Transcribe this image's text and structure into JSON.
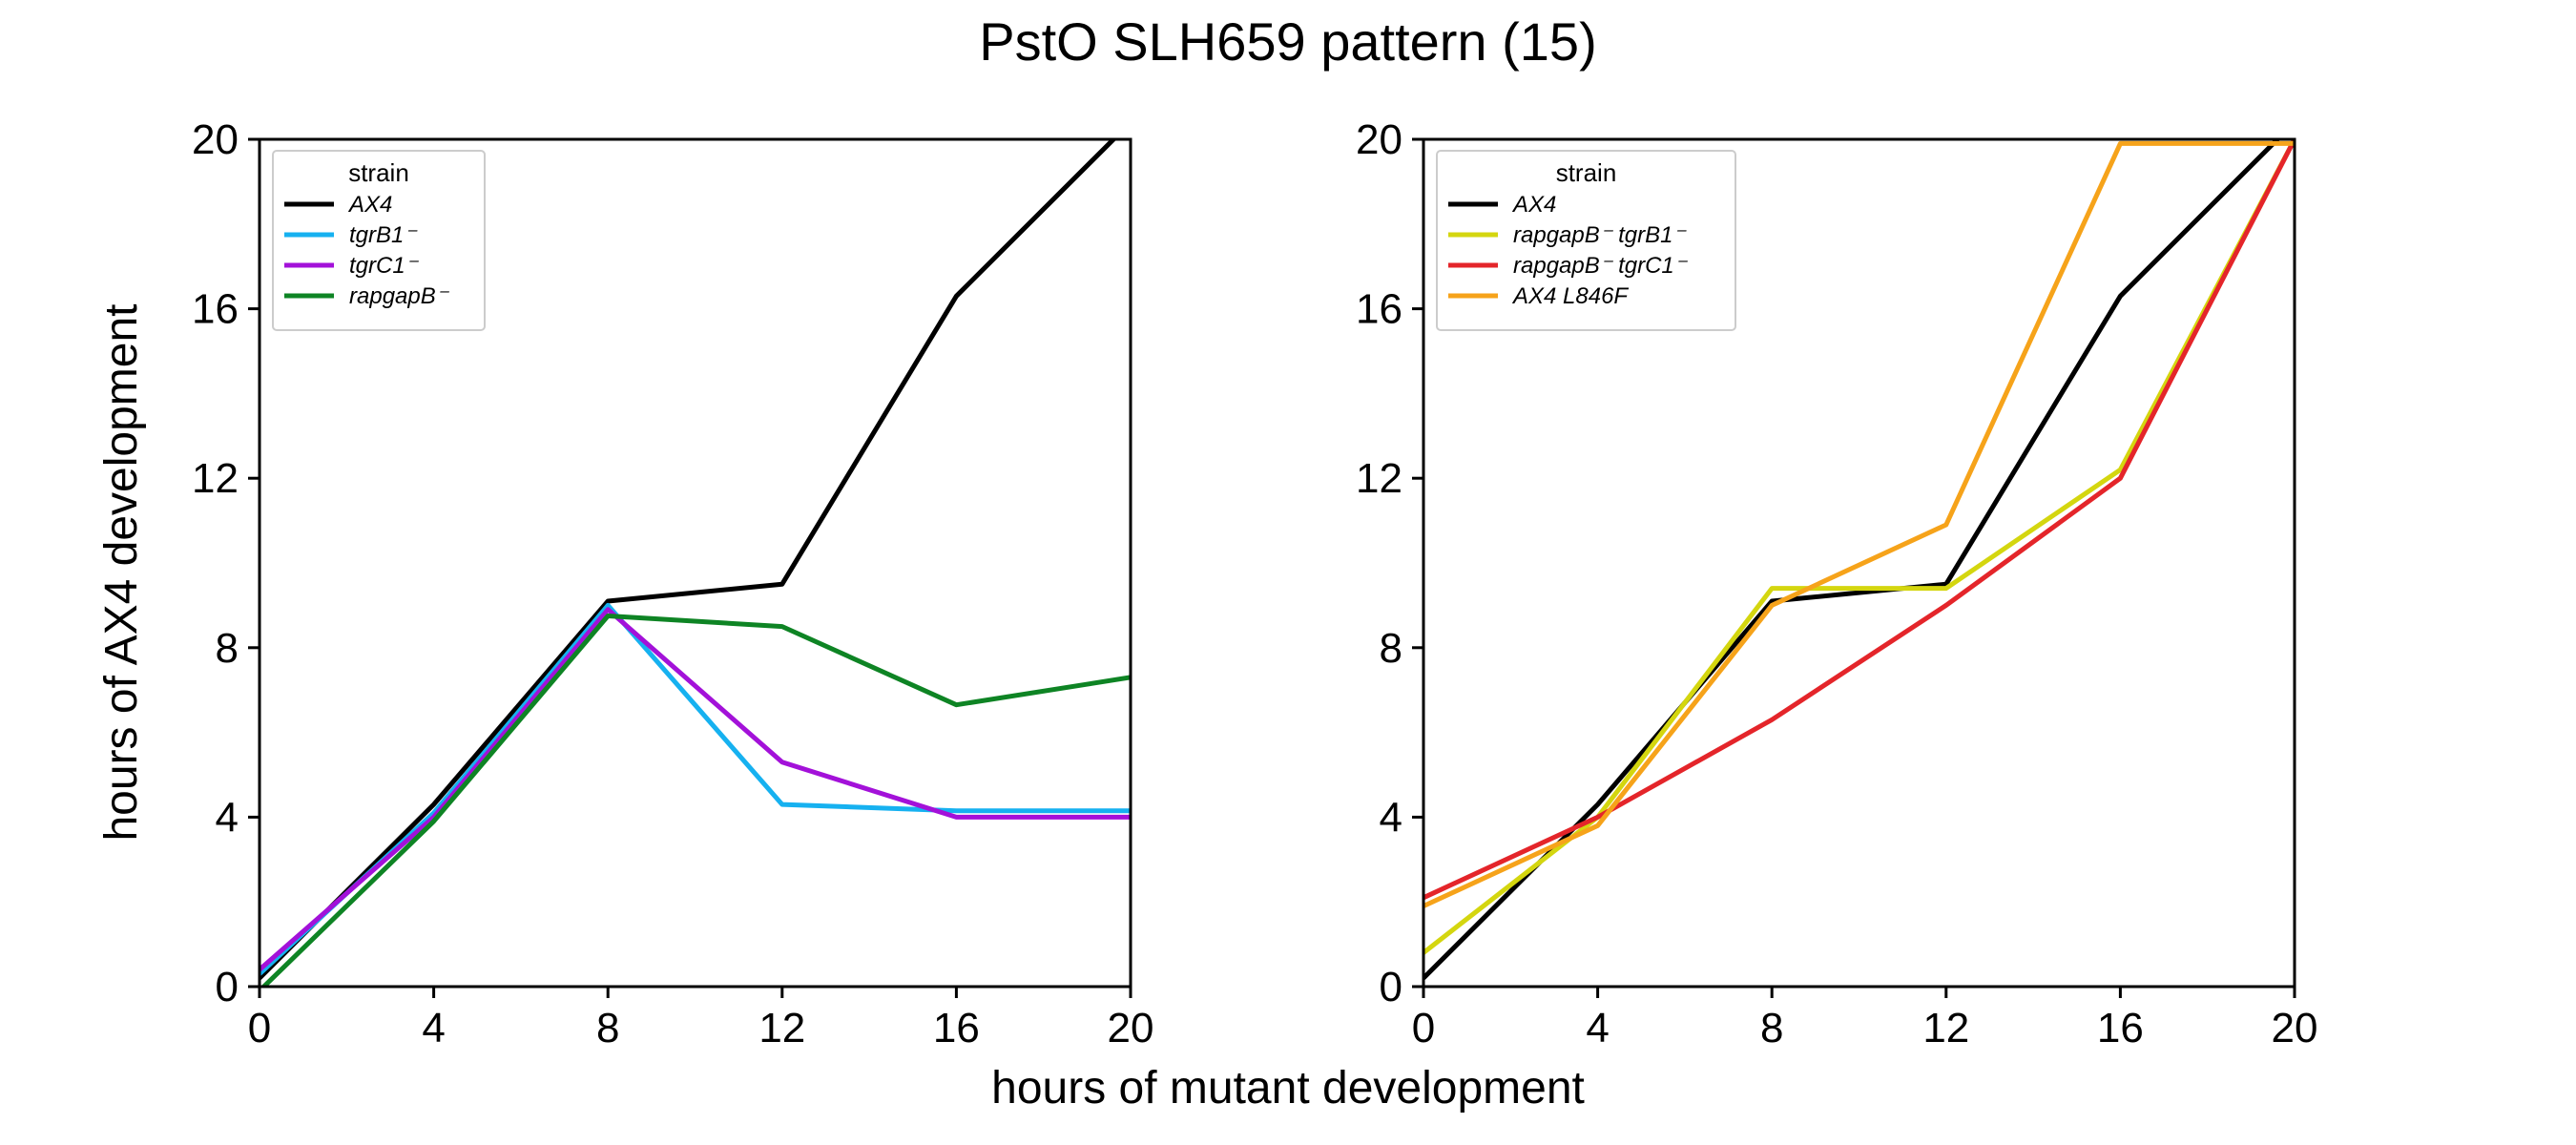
{
  "figure": {
    "title": "PstO SLH659 pattern (15)",
    "xlabel": "hours of mutant development",
    "ylabel": "hours of AX4 development"
  },
  "chart_data": [
    {
      "type": "line",
      "panel": "left",
      "xlim": [
        0,
        20
      ],
      "ylim": [
        0,
        20
      ],
      "xticks": [
        0,
        4,
        8,
        12,
        16,
        20
      ],
      "yticks": [
        0,
        4,
        8,
        12,
        16,
        20
      ],
      "grid": false,
      "legend": {
        "title": "strain",
        "placement": "top-left"
      },
      "x": [
        0,
        4,
        8,
        12,
        16,
        20
      ],
      "series": [
        {
          "name": "AX4",
          "color": "#000000",
          "values": [
            0.2,
            4.3,
            9.1,
            9.5,
            16.3,
            20.4
          ]
        },
        {
          "name": "tgrB1⁻",
          "color": "#16b1f0",
          "values": [
            0.3,
            4.1,
            9.0,
            4.3,
            4.15,
            4.15
          ]
        },
        {
          "name": "tgrC1⁻",
          "color": "#a311d9",
          "values": [
            0.4,
            4.0,
            8.9,
            5.3,
            4.0,
            4.0
          ]
        },
        {
          "name": "rapgapB⁻",
          "color": "#0e8424",
          "values": [
            -0.1,
            3.9,
            8.75,
            8.5,
            6.65,
            7.3
          ]
        }
      ]
    },
    {
      "type": "line",
      "panel": "right",
      "xlim": [
        0,
        20
      ],
      "ylim": [
        0,
        20
      ],
      "xticks": [
        0,
        4,
        8,
        12,
        16,
        20
      ],
      "yticks": [
        0,
        4,
        8,
        12,
        16,
        20
      ],
      "grid": false,
      "legend": {
        "title": "strain",
        "placement": "top-left"
      },
      "x": [
        0,
        4,
        8,
        12,
        16,
        20
      ],
      "series": [
        {
          "name": "AX4",
          "color": "#000000",
          "values": [
            0.2,
            4.3,
            9.1,
            9.5,
            16.3,
            20.4
          ]
        },
        {
          "name": "rapgapB⁻ tgrB1⁻",
          "color": "#d4d60f",
          "values": [
            0.8,
            4.0,
            9.4,
            9.4,
            12.2,
            20.0
          ]
        },
        {
          "name": "rapgapB⁻ tgrC1⁻",
          "color": "#e4252a",
          "values": [
            2.1,
            4.0,
            6.3,
            9.0,
            12.0,
            20.0
          ]
        },
        {
          "name": "AX4 L846F",
          "color": "#f6a31a",
          "values": [
            1.9,
            3.8,
            9.0,
            10.9,
            19.9,
            19.9
          ]
        }
      ]
    }
  ]
}
